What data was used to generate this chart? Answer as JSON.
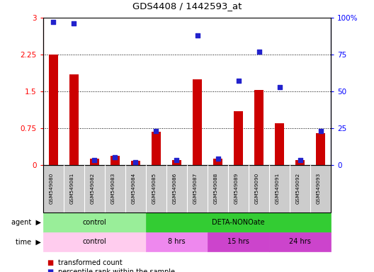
{
  "title": "GDS4408 / 1442593_at",
  "samples": [
    "GSM549080",
    "GSM549081",
    "GSM549082",
    "GSM549083",
    "GSM549084",
    "GSM549085",
    "GSM549086",
    "GSM549087",
    "GSM549088",
    "GSM549089",
    "GSM549090",
    "GSM549091",
    "GSM549092",
    "GSM549093"
  ],
  "red_values": [
    2.25,
    1.85,
    0.13,
    0.18,
    0.08,
    0.68,
    0.09,
    1.75,
    0.13,
    1.1,
    1.52,
    0.85,
    0.1,
    0.65
  ],
  "blue_values": [
    97,
    96,
    3,
    5,
    2,
    23,
    3,
    88,
    4,
    57,
    77,
    53,
    3,
    23
  ],
  "ylim_left": [
    0,
    3
  ],
  "ylim_right": [
    0,
    100
  ],
  "yticks_left": [
    0,
    0.75,
    1.5,
    2.25,
    3
  ],
  "yticks_right": [
    0,
    25,
    50,
    75,
    100
  ],
  "ytick_labels_left": [
    "0",
    "0.75",
    "1.5",
    "2.25",
    "3"
  ],
  "ytick_labels_right": [
    "0",
    "25",
    "50",
    "75",
    "100%"
  ],
  "agent_groups": [
    {
      "label": "control",
      "color": "#99EE99",
      "start": 0,
      "end": 5
    },
    {
      "label": "DETA-NONOate",
      "color": "#33CC33",
      "start": 5,
      "end": 14
    }
  ],
  "time_groups": [
    {
      "label": "control",
      "color": "#FFCCEE",
      "start": 0,
      "end": 5
    },
    {
      "label": "8 hrs",
      "color": "#EE88EE",
      "start": 5,
      "end": 8
    },
    {
      "label": "15 hrs",
      "color": "#CC44CC",
      "start": 8,
      "end": 11
    },
    {
      "label": "24 hrs",
      "color": "#CC44CC",
      "start": 11,
      "end": 14
    }
  ],
  "legend_red": "transformed count",
  "legend_blue": "percentile rank within the sample",
  "agent_label": "agent",
  "time_label": "time",
  "bar_color_red": "#CC0000",
  "bar_color_blue": "#2222CC",
  "tick_bg_color": "#CCCCCC"
}
